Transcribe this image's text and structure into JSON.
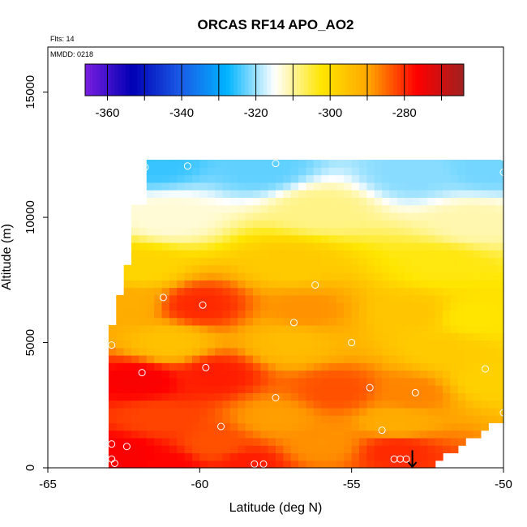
{
  "chart_data": {
    "type": "heatmap",
    "title": "ORCAS RF14 APO_AO2",
    "flights_label": "Flts: 14",
    "date_label": "MMDD: 0218",
    "xlabel": "Latitude (deg N)",
    "ylabel": "Altitude (m)",
    "xlim": [
      -65,
      -50
    ],
    "ylim": [
      0,
      16800
    ],
    "x_ticks": [
      -65,
      -60,
      -55,
      -50
    ],
    "y_ticks": [
      0,
      5000,
      10000,
      15000
    ],
    "grid": false,
    "legend_position": "top",
    "colorbar": {
      "range": [
        -366,
        -264
      ],
      "ticks": [
        -360,
        -340,
        -320,
        -300,
        -280
      ],
      "colors": [
        "#7a1fe0",
        "#0000b4",
        "#1a5ae6",
        "#00b4ff",
        "#ffffff",
        "#ffe600",
        "#ffa500",
        "#ff0000",
        "#a02020"
      ]
    },
    "field_extent": {
      "lat_range": [
        -63,
        -50
      ],
      "alt_top_m": 12300
    },
    "field": {
      "anchors": [
        {
          "lat": -61.5,
          "alt": 12200,
          "value": -325
        },
        {
          "lat": -58.0,
          "alt": 12000,
          "value": -323
        },
        {
          "lat": -53.0,
          "alt": 11800,
          "value": -321
        },
        {
          "lat": -50.5,
          "alt": 12000,
          "value": -322
        },
        {
          "lat": -61.0,
          "alt": 10000,
          "value": -313
        },
        {
          "lat": -56.0,
          "alt": 10300,
          "value": -309
        },
        {
          "lat": -51.0,
          "alt": 9800,
          "value": -311
        },
        {
          "lat": -62.0,
          "alt": 8000,
          "value": -299
        },
        {
          "lat": -57.0,
          "alt": 8200,
          "value": -297
        },
        {
          "lat": -52.0,
          "alt": 8100,
          "value": -303
        },
        {
          "lat": -60.0,
          "alt": 6500,
          "value": -280
        },
        {
          "lat": -56.5,
          "alt": 6300,
          "value": -288
        },
        {
          "lat": -53.0,
          "alt": 6200,
          "value": -296
        },
        {
          "lat": -62.5,
          "alt": 6600,
          "value": -291
        },
        {
          "lat": -51.0,
          "alt": 6000,
          "value": -302
        },
        {
          "lat": -61.0,
          "alt": 5000,
          "value": -295
        },
        {
          "lat": -57.0,
          "alt": 5000,
          "value": -294
        },
        {
          "lat": -52.0,
          "alt": 4800,
          "value": -297
        },
        {
          "lat": -62.0,
          "alt": 3500,
          "value": -276
        },
        {
          "lat": -59.5,
          "alt": 3700,
          "value": -279
        },
        {
          "lat": -55.5,
          "alt": 3100,
          "value": -283
        },
        {
          "lat": -53.0,
          "alt": 3000,
          "value": -287
        },
        {
          "lat": -50.5,
          "alt": 3500,
          "value": -298
        },
        {
          "lat": -61.5,
          "alt": 2000,
          "value": -282
        },
        {
          "lat": -57.5,
          "alt": 2000,
          "value": -289
        },
        {
          "lat": -53.5,
          "alt": 1800,
          "value": -291
        },
        {
          "lat": -62.5,
          "alt": 600,
          "value": -276
        },
        {
          "lat": -59.5,
          "alt": 900,
          "value": -283
        },
        {
          "lat": -56.0,
          "alt": 1000,
          "value": -288
        },
        {
          "lat": -53.5,
          "alt": 700,
          "value": -280
        },
        {
          "lat": -61.0,
          "alt": 100,
          "value": -277
        },
        {
          "lat": -58.5,
          "alt": 150,
          "value": -279
        }
      ]
    },
    "observations": [
      {
        "lat": -61.8,
        "alt": 12000
      },
      {
        "lat": -61.9,
        "alt": 12000
      },
      {
        "lat": -60.4,
        "alt": 12050
      },
      {
        "lat": -57.5,
        "alt": 12150
      },
      {
        "lat": -50.0,
        "alt": 12400
      },
      {
        "lat": -50.0,
        "alt": 11800
      },
      {
        "lat": -61.2,
        "alt": 6800
      },
      {
        "lat": -59.9,
        "alt": 6500
      },
      {
        "lat": -56.2,
        "alt": 7300
      },
      {
        "lat": -56.9,
        "alt": 5800
      },
      {
        "lat": -55.0,
        "alt": 5000
      },
      {
        "lat": -62.9,
        "alt": 4900
      },
      {
        "lat": -61.9,
        "alt": 3800
      },
      {
        "lat": -59.8,
        "alt": 4000
      },
      {
        "lat": -54.4,
        "alt": 3200
      },
      {
        "lat": -52.9,
        "alt": 3000
      },
      {
        "lat": -50.6,
        "alt": 3950
      },
      {
        "lat": -57.5,
        "alt": 2800
      },
      {
        "lat": -59.3,
        "alt": 1650
      },
      {
        "lat": -54.0,
        "alt": 1500
      },
      {
        "lat": -50.0,
        "alt": 2200
      },
      {
        "lat": -62.9,
        "alt": 950
      },
      {
        "lat": -62.4,
        "alt": 850
      },
      {
        "lat": -62.9,
        "alt": 350
      },
      {
        "lat": -62.8,
        "alt": 180
      },
      {
        "lat": -58.2,
        "alt": 150
      },
      {
        "lat": -57.9,
        "alt": 150
      },
      {
        "lat": -53.6,
        "alt": 350
      },
      {
        "lat": -53.4,
        "alt": 350
      },
      {
        "lat": -53.2,
        "alt": 350
      }
    ],
    "arrow": {
      "lat": -53.0,
      "alt_from": 700,
      "alt_to": 0
    }
  }
}
